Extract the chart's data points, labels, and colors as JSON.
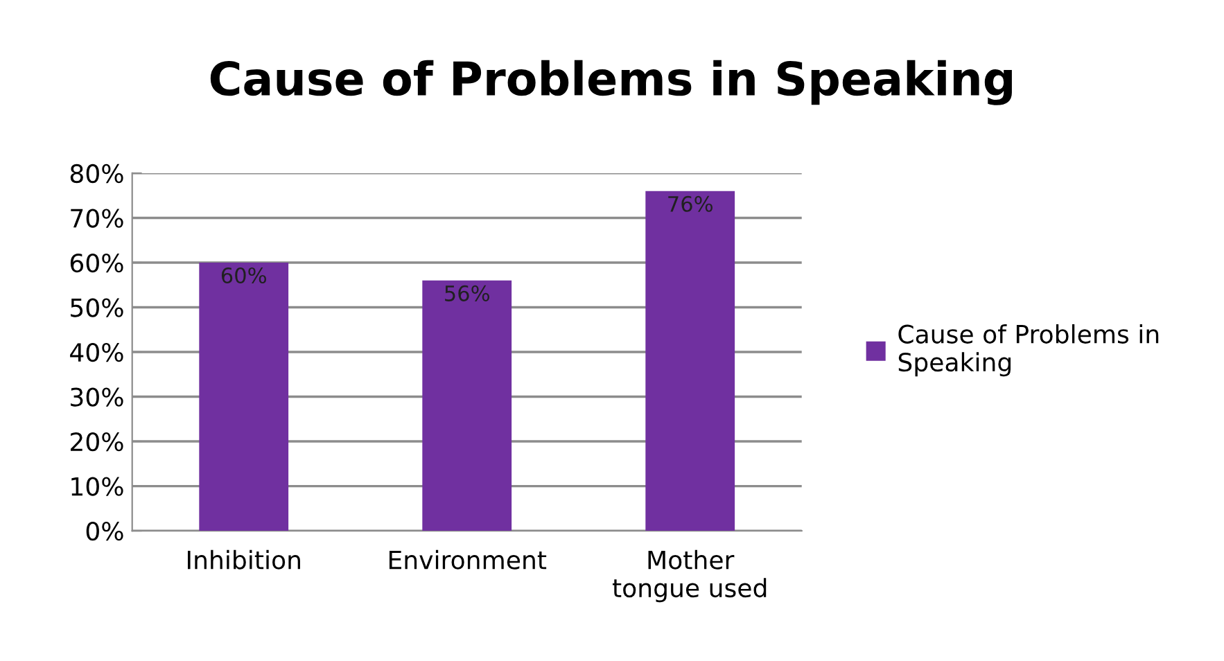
{
  "chart_data": {
    "type": "bar",
    "title": "Cause of Problems in Speaking",
    "categories": [
      "Inhibition",
      "Environment",
      "Mother\ntongue used"
    ],
    "series": [
      {
        "name": "Cause of Problems in\nSpeaking",
        "color": "#7030a0",
        "values": [
          60,
          56,
          76
        ],
        "value_labels": [
          "60%",
          "56%",
          "76%"
        ]
      }
    ],
    "ylim": [
      0,
      80
    ],
    "yticks": [
      {
        "value": 0,
        "label": "0%"
      },
      {
        "value": 10,
        "label": "10%"
      },
      {
        "value": 20,
        "label": "20%"
      },
      {
        "value": 30,
        "label": "30%"
      },
      {
        "value": 40,
        "label": "40%"
      },
      {
        "value": 50,
        "label": "50%"
      },
      {
        "value": 60,
        "label": "60%"
      },
      {
        "value": 70,
        "label": "70%"
      },
      {
        "value": 80,
        "label": "80%"
      }
    ],
    "grid": "y",
    "legend": "right"
  }
}
